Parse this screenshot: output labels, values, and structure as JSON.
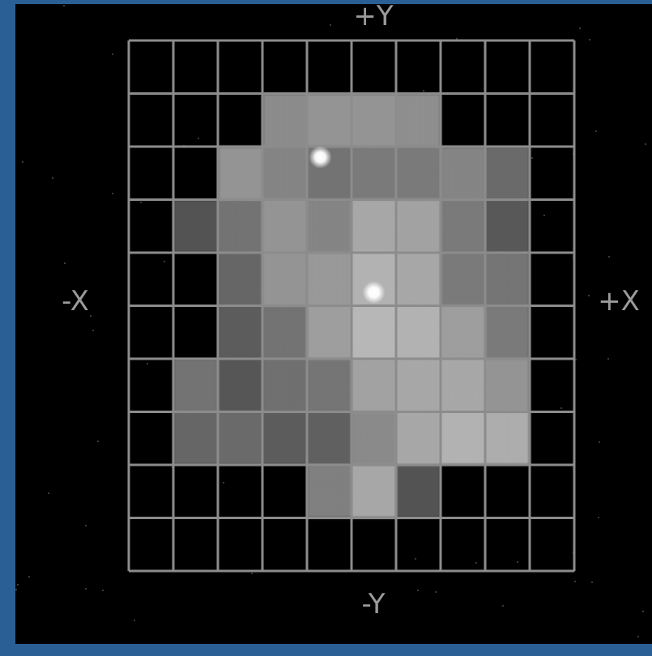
{
  "axes": {
    "top": "+Y",
    "bottom": "-Y",
    "left": "-X",
    "right": "+X"
  },
  "grid": {
    "rows": 10,
    "cols": 10,
    "cells": [
      [
        null,
        null,
        null,
        null,
        null,
        null,
        null,
        null,
        null,
        null
      ],
      [
        null,
        null,
        null,
        0.55,
        0.58,
        0.58,
        0.56,
        null,
        null,
        null
      ],
      [
        null,
        null,
        0.58,
        0.52,
        0.45,
        0.48,
        0.48,
        0.52,
        0.42,
        null
      ],
      [
        null,
        0.32,
        0.45,
        0.58,
        0.52,
        0.66,
        0.64,
        0.48,
        0.35,
        null
      ],
      [
        null,
        null,
        0.4,
        0.58,
        0.6,
        0.7,
        0.66,
        0.48,
        0.46,
        null
      ],
      [
        null,
        null,
        0.36,
        0.45,
        0.62,
        0.72,
        0.7,
        0.62,
        0.48,
        null
      ],
      [
        null,
        0.45,
        0.34,
        0.44,
        0.46,
        0.64,
        0.66,
        0.66,
        0.58,
        null
      ],
      [
        null,
        0.4,
        0.42,
        0.36,
        0.38,
        0.54,
        0.66,
        0.7,
        0.68,
        null
      ],
      [
        null,
        null,
        null,
        null,
        0.5,
        0.66,
        0.32,
        null,
        null,
        null
      ],
      [
        null,
        null,
        null,
        null,
        null,
        null,
        null,
        null,
        null,
        null
      ]
    ],
    "colors": {
      "background": "#000000",
      "grid_lines": "#8c8c8c",
      "border": "#2a5f96"
    }
  },
  "markers": [
    {
      "name": "star-marker-upper",
      "row": 2,
      "col": 4,
      "col_offset": 0.3,
      "row_offset": 0.2
    },
    {
      "name": "star-marker-center",
      "row": 4,
      "col": 5,
      "col_offset": 0.5,
      "row_offset": 0.75
    }
  ]
}
